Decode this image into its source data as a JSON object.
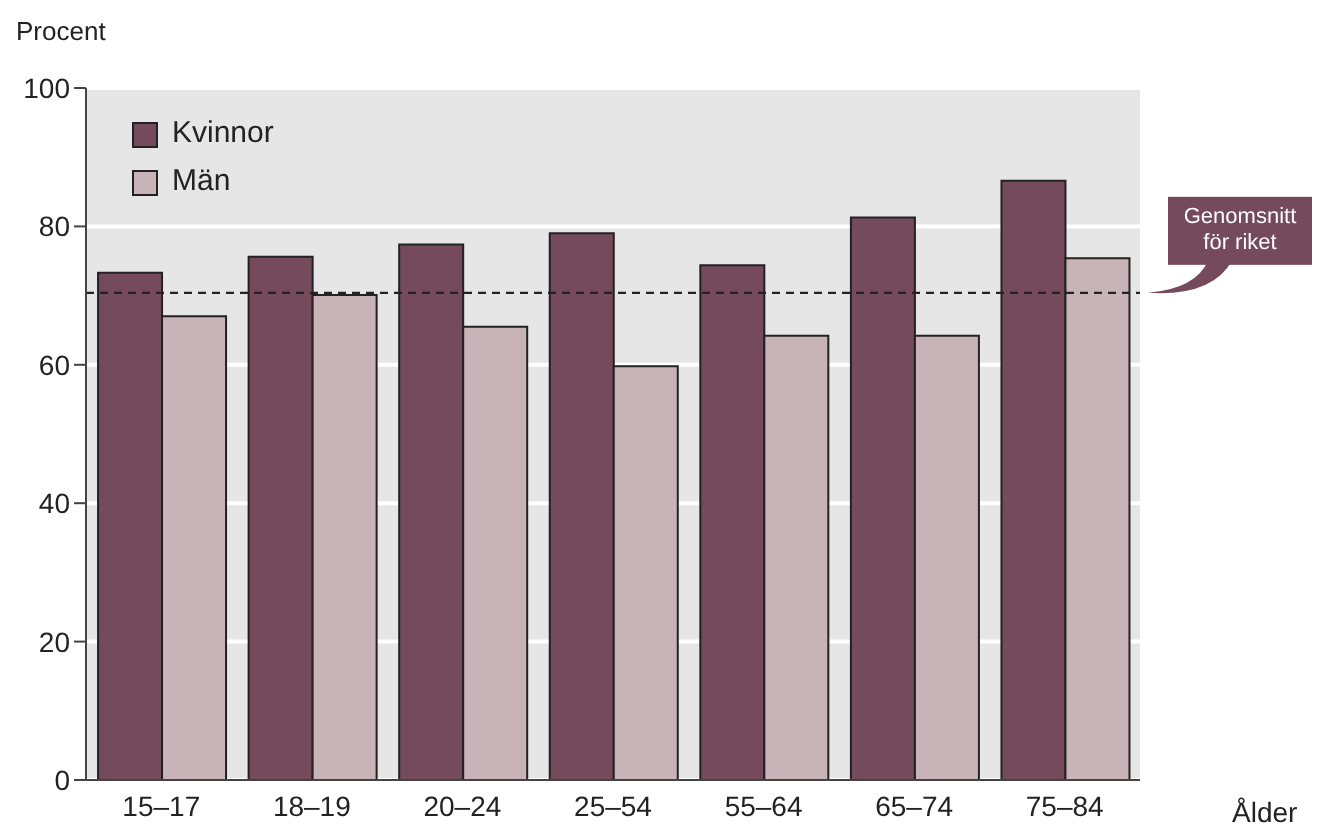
{
  "chart_data": {
    "type": "bar",
    "ylabel": "Procent",
    "xlabel": "Ålder",
    "categories": [
      "15–17",
      "18–19",
      "20–24",
      "25–54",
      "55–64",
      "65–74",
      "75–84"
    ],
    "series": [
      {
        "name": "Kvinnor",
        "color": "#744a5c",
        "values": [
          73.3,
          75.6,
          77.4,
          79.0,
          74.4,
          81.3,
          86.6
        ]
      },
      {
        "name": "Män",
        "color": "#c8b4b8",
        "values": [
          67.0,
          70.1,
          65.5,
          59.8,
          64.2,
          64.2,
          75.4
        ]
      }
    ],
    "ylim": [
      0,
      100
    ],
    "yticks": [
      0,
      20,
      40,
      60,
      80,
      100
    ],
    "grid": "y",
    "legend": "top left",
    "ref_lines": [
      {
        "axis": "y",
        "value": 70.4,
        "label": "Genomsnitt för riket",
        "color": "#222222",
        "line_style": "dashed"
      }
    ]
  }
}
